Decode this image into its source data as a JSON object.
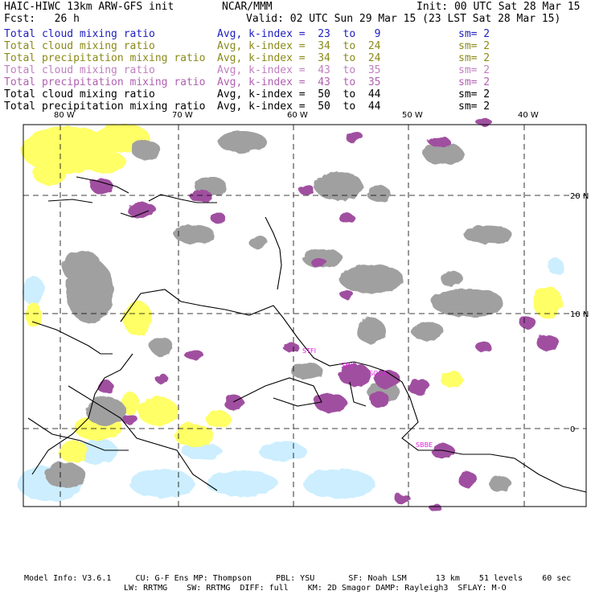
{
  "header": {
    "model_title": "HAIC-HIWC 13km ARW-GFS init",
    "center": "NCAR/MMM",
    "init": "Init: 00 UTC Sat 28 Mar 15",
    "forecast": "Fcst:   26 h",
    "valid": "Valid: 02 UTC Sun 29 Mar 15 (23 LST Sat 28 Mar 15)"
  },
  "legend": [
    {
      "field": "Total cloud mixing ratio",
      "stat": "Avg, k-index =  23  to   9",
      "sm": "sm= 2",
      "color": "#2020c0"
    },
    {
      "field": "Total cloud mixing ratio",
      "stat": "Avg, k-index =  34  to  24",
      "sm": "sm= 2",
      "color": "#8a8a1a"
    },
    {
      "field": "Total precipitation mixing ratio",
      "stat": "Avg, k-index =  34  to  24",
      "sm": "sm= 2",
      "color": "#8a8a1a"
    },
    {
      "field": "Total cloud mixing ratio",
      "stat": "Avg, k-index =  43  to  35",
      "sm": "sm= 2",
      "color": "#c080c0"
    },
    {
      "field": "Total precipitation mixing ratio",
      "stat": "Avg, k-index =  43  to  35",
      "sm": "sm= 2",
      "color": "#b060b0"
    },
    {
      "field": "Total cloud mixing ratio",
      "stat": "Avg, k-index =  50  to  44",
      "sm": "sm= 2",
      "color": "#000000"
    },
    {
      "field": "Total precipitation mixing ratio",
      "stat": "Avg, k-index =  50  to  44",
      "sm": "sm= 2",
      "color": "#000000"
    }
  ],
  "map": {
    "lon_labels": [
      "80 W",
      "70 W",
      "60 W",
      "50 W",
      "40 W"
    ],
    "lat_labels": [
      "20 N",
      "10 N",
      "0"
    ],
    "stations": [
      "STFI",
      "SMJP",
      "SOCA",
      "SBBE"
    ],
    "colors": {
      "gray": "#a0a0a0",
      "yellow": "#ffff66",
      "purple": "#a050a0",
      "lightblue": "#cceeff",
      "station": "#e020e0"
    }
  },
  "footer": {
    "line1": "Model Info: V3.6.1     CU: G-F Ens MP: Thompson     PBL: YSU       SF: Noah LSM      13 km    51 levels    60 sec",
    "line2": "LW: RRTMG    SW: RRTMG  DIFF: full    KM: 2D Smagor DAMP: Rayleigh3  SFLAY: M-O"
  }
}
